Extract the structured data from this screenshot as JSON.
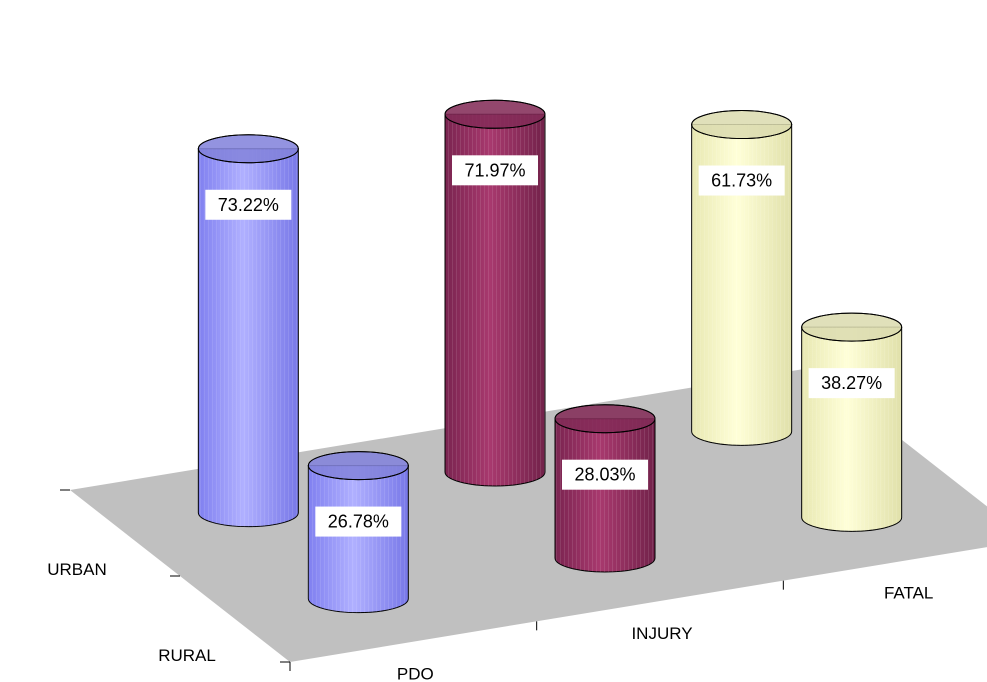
{
  "chart_data": {
    "type": "bar",
    "subtype": "3d-cylinder",
    "title": "",
    "categories": [
      "PDO",
      "INJURY",
      "FATAL"
    ],
    "depth_categories": [
      "URBAN",
      "RURAL"
    ],
    "series": [
      {
        "name": "URBAN",
        "values": [
          73.22,
          71.97,
          61.73
        ],
        "value_labels": [
          "73.22%",
          "71.97%",
          "61.73%"
        ]
      },
      {
        "name": "RURAL",
        "values": [
          26.78,
          28.03,
          38.27
        ],
        "value_labels": [
          "26.78%",
          "28.03%",
          "38.27%"
        ]
      }
    ],
    "category_colors": [
      "#9999FF",
      "#993366",
      "#FFFFCC"
    ],
    "floor_color": "#C0C0C0",
    "ylim": [
      0,
      80
    ],
    "grid": false,
    "legend": "none"
  }
}
